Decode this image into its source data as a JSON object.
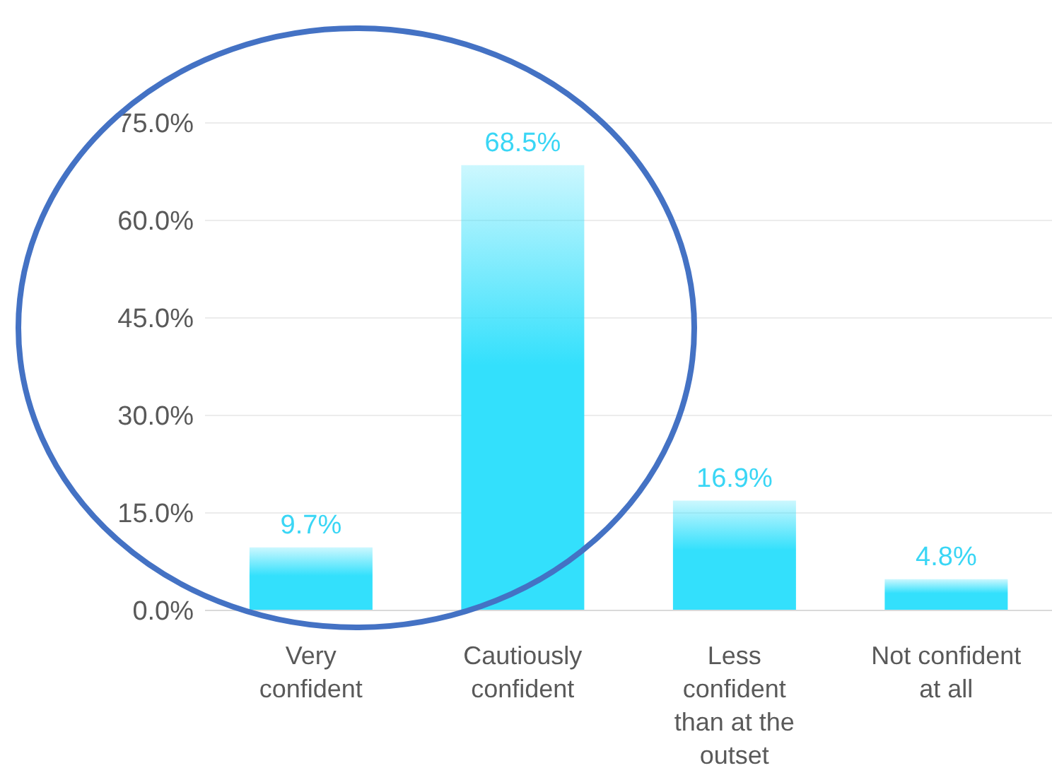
{
  "chart_data": {
    "type": "bar",
    "categories": [
      "Very confident",
      "Cautiously confident",
      "Less confident than at the outset",
      "Not confident at all"
    ],
    "values": [
      9.7,
      68.5,
      16.9,
      4.8
    ],
    "value_labels": [
      "9.7%",
      "68.5%",
      "16.9%",
      "4.8%"
    ],
    "color": "#33e0fc",
    "ylim": [
      0,
      75
    ],
    "yticks": [
      {
        "value": 0,
        "label": "0.0%"
      },
      {
        "value": 15,
        "label": "15.0%"
      },
      {
        "value": 30,
        "label": "30.0%"
      },
      {
        "value": 45,
        "label": "45.0%"
      },
      {
        "value": 60,
        "label": "60.0%"
      },
      {
        "value": 75,
        "label": "75.0%"
      }
    ],
    "grid": "y",
    "legend": false
  }
}
